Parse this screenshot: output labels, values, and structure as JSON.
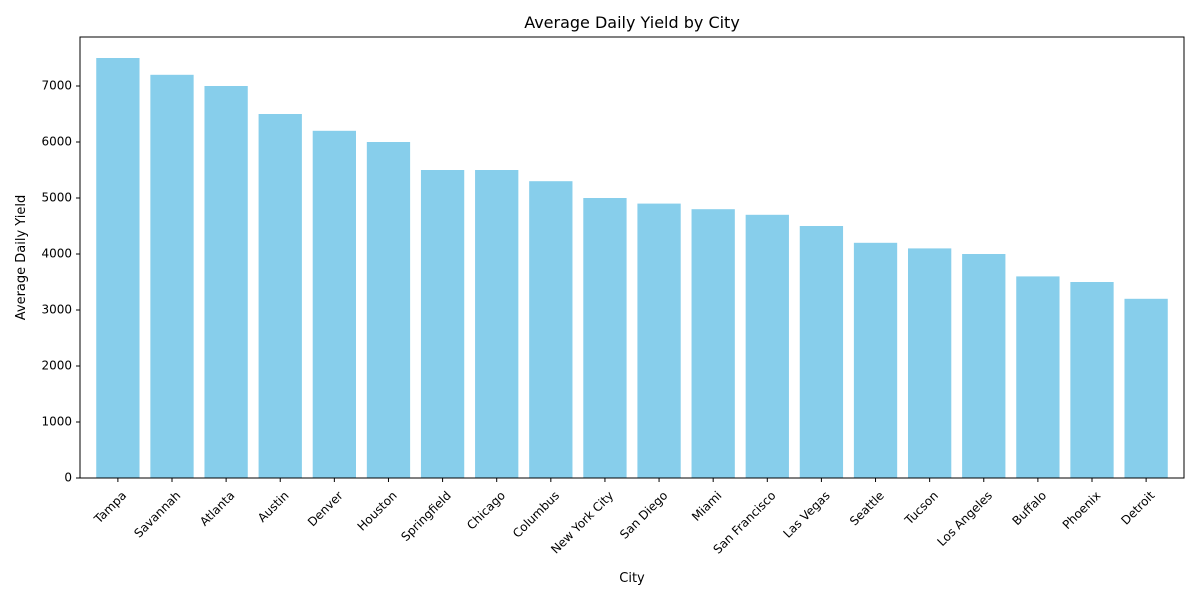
{
  "chart_data": {
    "type": "bar",
    "title": "Average Daily Yield by City",
    "xlabel": "City",
    "ylabel": "Average Daily Yield",
    "categories": [
      "Tampa",
      "Savannah",
      "Atlanta",
      "Austin",
      "Denver",
      "Houston",
      "Springfield",
      "Chicago",
      "Columbus",
      "New York City",
      "San Diego",
      "Miami",
      "San Francisco",
      "Las Vegas",
      "Seattle",
      "Tucson",
      "Los Angeles",
      "Buffalo",
      "Phoenix",
      "Detroit"
    ],
    "values": [
      7500,
      7200,
      7000,
      6500,
      6200,
      6000,
      5500,
      5500,
      5300,
      5000,
      4900,
      4800,
      4700,
      4500,
      4200,
      4100,
      4000,
      3600,
      3500,
      3200
    ],
    "ylim": [
      0,
      7875
    ],
    "yticks": [
      0,
      1000,
      2000,
      3000,
      4000,
      5000,
      6000,
      7000
    ],
    "bar_color": "#87CEEB",
    "grid": false,
    "legend": false
  }
}
